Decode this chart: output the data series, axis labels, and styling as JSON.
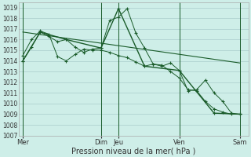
{
  "background_color": "#ceeee8",
  "grid_color": "#aacccc",
  "line_color": "#1a5c2a",
  "xlabel": "Pression niveau de la mer( hPa )",
  "ylim": [
    1007,
    1019.5
  ],
  "yticks": [
    1007,
    1008,
    1009,
    1010,
    1011,
    1012,
    1013,
    1014,
    1015,
    1016,
    1017,
    1018,
    1019
  ],
  "xtick_labels": [
    "Mer",
    "Dim",
    "Jeu",
    "Ven",
    "Sam"
  ],
  "xtick_positions": [
    0,
    9,
    11,
    18,
    25
  ],
  "vlines_x": [
    0,
    9,
    11,
    18,
    25
  ],
  "series1_x": [
    0,
    1,
    2,
    3,
    4,
    5,
    6,
    7,
    8,
    9,
    10,
    11,
    12,
    13,
    14,
    15,
    16,
    17,
    18,
    19,
    20,
    21,
    22,
    23,
    24,
    25
  ],
  "series1_y": [
    1014.0,
    1015.3,
    1016.7,
    1016.3,
    1015.8,
    1016.0,
    1015.3,
    1014.8,
    1015.1,
    1015.2,
    1017.8,
    1018.1,
    1018.9,
    1016.6,
    1015.2,
    1013.7,
    1013.5,
    1013.8,
    1013.1,
    1011.2,
    1011.3,
    1012.2,
    1011.0,
    1010.2,
    1009.1,
    1009.0
  ],
  "series2_x": [
    0,
    1,
    2,
    3,
    4,
    5,
    6,
    7,
    8,
    9,
    10,
    11,
    12,
    13,
    14,
    15,
    16,
    17,
    18,
    19,
    20,
    21,
    22,
    23,
    24,
    25
  ],
  "series2_y": [
    1014.5,
    1016.0,
    1016.8,
    1016.5,
    1014.4,
    1014.0,
    1014.6,
    1015.1,
    1015.0,
    1015.0,
    1014.8,
    1014.5,
    1014.3,
    1013.9,
    1013.5,
    1013.7,
    1013.6,
    1013.0,
    1012.4,
    1011.3,
    1011.2,
    1010.2,
    1009.5,
    1009.2,
    1009.0,
    1009.0
  ],
  "series3_x": [
    0,
    2,
    5,
    9,
    11,
    14,
    18,
    22,
    25
  ],
  "series3_y": [
    1014.0,
    1016.7,
    1016.0,
    1015.2,
    1018.9,
    1013.5,
    1013.1,
    1009.1,
    1009.0
  ],
  "trend_x": [
    0,
    25
  ],
  "trend_y": [
    1016.7,
    1013.8
  ],
  "xlim": [
    -0.5,
    26
  ]
}
